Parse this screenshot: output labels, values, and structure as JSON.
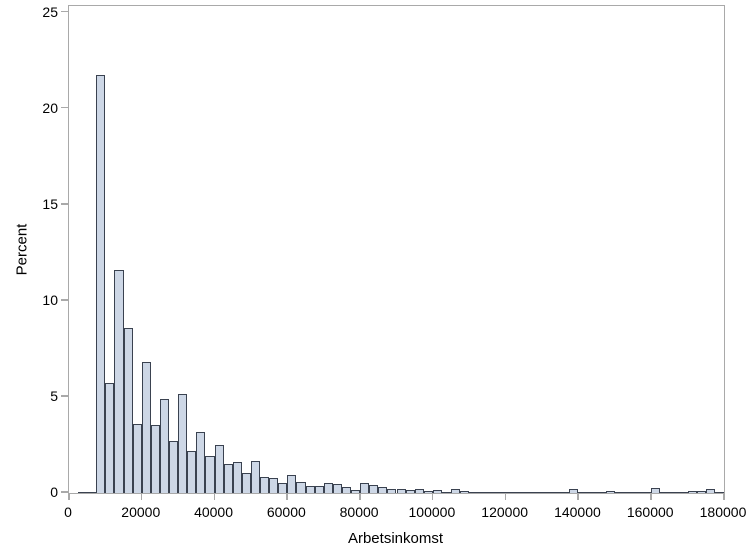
{
  "figure": {
    "y_axis_title": "Percent",
    "x_axis_title": "Arbetsinkomst",
    "x_tick_labels": [
      "0",
      "20000",
      "40000",
      "60000",
      "80000",
      "100000",
      "120000",
      "140000",
      "160000",
      "180000"
    ],
    "y_tick_labels": [
      "0",
      "5",
      "10",
      "15",
      "20",
      "25"
    ]
  },
  "chart_data": {
    "type": "bar",
    "subtype": "histogram",
    "title": "",
    "xlabel": "Arbetsinkomst",
    "ylabel": "Percent",
    "xlim": [
      0,
      180000
    ],
    "ylim": [
      0,
      25
    ],
    "x_tick_values": [
      0,
      20000,
      40000,
      60000,
      80000,
      100000,
      120000,
      140000,
      160000,
      180000
    ],
    "y_tick_values": [
      0,
      5,
      10,
      15,
      20,
      25
    ],
    "grid": false,
    "legend": false,
    "bin_start": 0,
    "bin_width": 2500,
    "values_percent": [
      0,
      0.05,
      0.07,
      21.75,
      5.75,
      11.6,
      8.6,
      3.6,
      6.8,
      3.55,
      4.9,
      2.7,
      5.15,
      2.2,
      3.15,
      1.95,
      2.5,
      1.5,
      1.62,
      1.03,
      1.68,
      0.85,
      0.8,
      0.52,
      0.95,
      0.57,
      0.34,
      0.37,
      0.5,
      0.45,
      0.3,
      0.16,
      0.5,
      0.42,
      0.29,
      0.22,
      0.19,
      0.16,
      0.22,
      0.12,
      0.15,
      0.06,
      0.23,
      0.1,
      0.05,
      0.04,
      0.04,
      0.04,
      0.05,
      0.07,
      0.05,
      0.03,
      0.03,
      0.04,
      0.05,
      0.22,
      0.06,
      0.03,
      0.03,
      0.08,
      0.07,
      0.03,
      0.03,
      0.04,
      0.26,
      0.05,
      0.03,
      0.03,
      0.08,
      0.08,
      0.19,
      0.04
    ],
    "colors": {
      "bar_fill": "#cdd7e6",
      "bar_border": "#3a4250",
      "axis_frame": "#a9a9a9",
      "text": "#000000",
      "background": "#ffffff"
    }
  }
}
